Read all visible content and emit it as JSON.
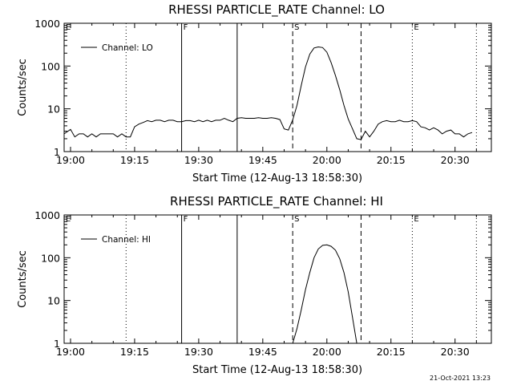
{
  "chart_data": [
    {
      "type": "line",
      "title": "RHESSI PARTICLE_RATE Channel: LO",
      "xlabel": "Start Time (12-Aug-13 18:58:30)",
      "ylabel": "Counts/sec",
      "yscale": "log",
      "ylim": [
        1,
        1000
      ],
      "xlim": [
        "18:58:30",
        "20:38:30"
      ],
      "xticks": [
        "19:00",
        "19:15",
        "19:30",
        "19:45",
        "20:00",
        "20:15",
        "20:30"
      ],
      "yticks": [
        "1",
        "10",
        "100",
        "1000"
      ],
      "legend": "top-left",
      "series": [
        {
          "name": "Channel: LO",
          "x": [
            "18:58:30",
            "19:00",
            "19:01",
            "19:02",
            "19:03",
            "19:04",
            "19:05",
            "19:06",
            "19:07",
            "19:08",
            "19:09",
            "19:10",
            "19:11",
            "19:12",
            "19:13",
            "19:14",
            "19:15",
            "19:16",
            "19:17",
            "19:18",
            "19:19",
            "19:20",
            "19:21",
            "19:22",
            "19:23",
            "19:24",
            "19:25",
            "19:26",
            "19:27",
            "19:28",
            "19:29",
            "19:30",
            "19:31",
            "19:32",
            "19:33",
            "19:34",
            "19:35",
            "19:36",
            "19:37",
            "19:38",
            "19:39",
            "19:40",
            "19:41",
            "19:42",
            "19:43",
            "19:44",
            "19:45",
            "19:46",
            "19:47",
            "19:48",
            "19:49",
            "19:50",
            "19:51",
            "19:52",
            "19:53",
            "19:54",
            "19:55",
            "19:56",
            "19:57",
            "19:58",
            "19:59",
            "20:00",
            "20:01",
            "20:02",
            "20:03",
            "20:04",
            "20:05",
            "20:06",
            "20:07",
            "20:08",
            "20:09",
            "20:10",
            "20:11",
            "20:12",
            "20:13",
            "20:14",
            "20:15",
            "20:16",
            "20:17",
            "20:18",
            "20:19",
            "20:20",
            "20:21",
            "20:22",
            "20:23",
            "20:24",
            "20:25",
            "20:26",
            "20:27",
            "20:28",
            "20:29",
            "20:30",
            "20:31",
            "20:32",
            "20:33",
            "20:34"
          ],
          "y": [
            2.6,
            3.3,
            2.2,
            2.6,
            2.6,
            2.2,
            2.6,
            2.2,
            2.6,
            2.6,
            2.6,
            2.6,
            2.2,
            2.6,
            2.2,
            2.2,
            3.8,
            4.4,
            4.8,
            5.3,
            5.0,
            5.4,
            5.4,
            5.0,
            5.4,
            5.4,
            5.0,
            5.0,
            5.3,
            5.3,
            5.0,
            5.4,
            5.0,
            5.4,
            5.0,
            5.4,
            5.4,
            6.0,
            5.4,
            5.0,
            6.0,
            6.2,
            6.0,
            6.0,
            6.0,
            6.2,
            6.0,
            6.0,
            6.2,
            6.0,
            5.6,
            3.4,
            3.2,
            5.5,
            12,
            35,
            95,
            190,
            265,
            280,
            270,
            210,
            120,
            60,
            28,
            12,
            5.8,
            3.4,
            2.0,
            1.9,
            3.0,
            2.2,
            3.0,
            4.4,
            5.0,
            5.3,
            5.0,
            5.0,
            5.4,
            5.0,
            5.0,
            5.3,
            5.0,
            3.8,
            3.6,
            3.2,
            3.6,
            3.2,
            2.6,
            3.0,
            3.2,
            2.6,
            2.6,
            2.2,
            2.6,
            2.8
          ]
        }
      ],
      "annotations": {
        "start_marker_letter": "S",
        "end_marker_letter": "E",
        "F": "F"
      }
    },
    {
      "type": "line",
      "title": "RHESSI PARTICLE_RATE Channel: HI",
      "xlabel": "Start Time (12-Aug-13 18:58:30)",
      "ylabel": "Counts/sec",
      "yscale": "log",
      "ylim": [
        1,
        1000
      ],
      "xlim": [
        "18:58:30",
        "20:38:30"
      ],
      "xticks": [
        "19:00",
        "19:15",
        "19:30",
        "19:45",
        "20:00",
        "20:15",
        "20:30"
      ],
      "yticks": [
        "1",
        "10",
        "100",
        "1000"
      ],
      "legend": "top-left",
      "series": [
        {
          "name": "Channel: HI",
          "x": [
            "19:52",
            "19:53",
            "19:54",
            "19:55",
            "19:56",
            "19:57",
            "19:58",
            "19:59",
            "20:00",
            "20:01",
            "20:02",
            "20:03",
            "20:04",
            "20:05",
            "20:06",
            "20:07"
          ],
          "y": [
            1.0,
            2.2,
            6,
            18,
            45,
            100,
            160,
            195,
            200,
            185,
            150,
            95,
            45,
            16,
            4,
            1.0
          ]
        }
      ],
      "annotations": {
        "start_marker_letter": "S",
        "end_marker_letter": "E",
        "F": "F"
      }
    }
  ],
  "vlines": {
    "dotted": [
      "19:13",
      "20:20",
      "20:35"
    ],
    "solid": [
      "19:26",
      "19:39"
    ],
    "dashed": [
      "19:52",
      "20:08"
    ],
    "letters": [
      {
        "t": "18:58:30",
        "label": "E"
      },
      {
        "t": "19:26",
        "label": "F"
      },
      {
        "t": "19:52",
        "label": "S"
      },
      {
        "t": "20:20",
        "label": "E"
      }
    ]
  },
  "timestamp": "21-Oct-2021 13:23"
}
